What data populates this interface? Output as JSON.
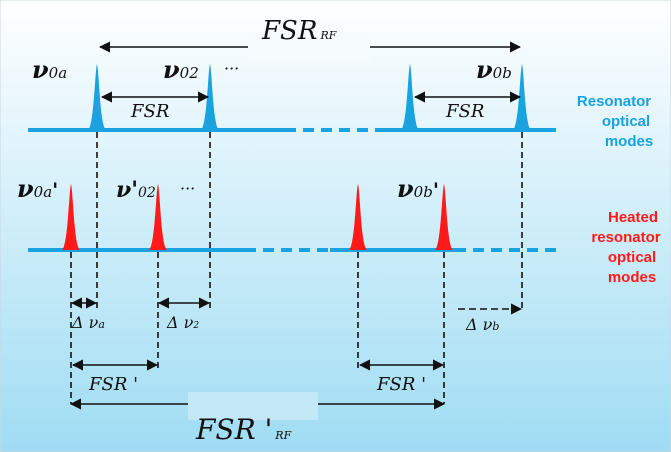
{
  "colors": {
    "background_top": "#ffffff",
    "background_bottom": "#9fdcf3",
    "resonator": "#1aa3e0",
    "heated": "#ff1a1a",
    "ink": "#111111",
    "resonator_label": "#17a3e2",
    "heated_label": "#ff1a1a"
  },
  "labels": {
    "fsr_rf_top": {
      "main": "FSR",
      "sub": "RF"
    },
    "fsr_rf_bottom": {
      "main": "FSR '",
      "sub": "RF"
    },
    "nu0a": {
      "main": "ν",
      "sub": "0a"
    },
    "nu02": {
      "main": "ν",
      "sub": "02"
    },
    "nu0b": {
      "main": "ν",
      "sub": "0b"
    },
    "nu0a_prime": {
      "main": "ν",
      "sub": "0a",
      "prime": "'"
    },
    "nu02_prime": {
      "main": "ν'",
      "sub": "02"
    },
    "nu0b_prime": {
      "main": "ν",
      "sub": "0b",
      "prime": "'"
    },
    "ellipsis_top": "···",
    "ellipsis_bottom": "···",
    "fsr_left": "FSR",
    "fsr_right": "FSR",
    "fsr_prime_left": "FSR '",
    "fsr_prime_right": "FSR '",
    "delta_a": {
      "main": "Δ ν",
      "sub": "a"
    },
    "delta_2": {
      "main": "Δ ν",
      "sub": "2"
    },
    "delta_b": {
      "main": "Δ ν",
      "sub": "b"
    }
  },
  "legend": {
    "resonator": [
      "Resonator",
      "optical",
      "modes"
    ],
    "heated": [
      "Heated",
      "resonator",
      "optical",
      "modes"
    ]
  }
}
